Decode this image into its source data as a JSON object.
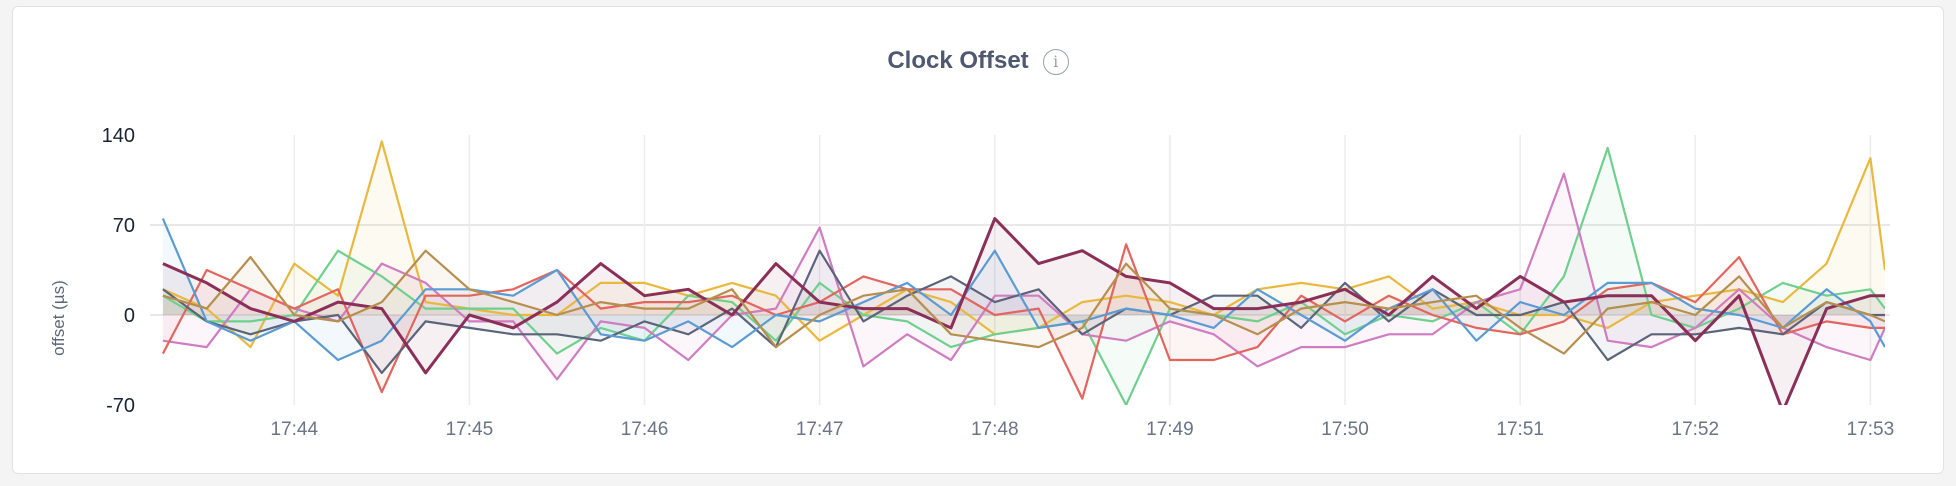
{
  "title": "Clock Offset",
  "info_icon": "info-circle-icon",
  "chart_data": {
    "type": "line",
    "fill": "area-to-zero",
    "title": "Clock Offset",
    "xlabel": "",
    "ylabel": "offset (µs)",
    "ylim": [
      -70,
      140
    ],
    "yticks": [
      "140",
      "70",
      "0",
      "-70"
    ],
    "xticks": [
      "17:44",
      "17:45",
      "17:46",
      "17:47",
      "17:48",
      "17:49",
      "17:50",
      "17:51",
      "17:52",
      "17:53"
    ],
    "xlim": [
      "17:43:14",
      "17:53:05"
    ],
    "grid": true,
    "legend": "none",
    "x": [
      "17:43:15",
      "17:43:30",
      "17:43:45",
      "17:44:00",
      "17:44:15",
      "17:44:30",
      "17:44:45",
      "17:45:00",
      "17:45:15",
      "17:45:30",
      "17:45:45",
      "17:46:00",
      "17:46:15",
      "17:46:30",
      "17:46:45",
      "17:47:00",
      "17:47:15",
      "17:47:30",
      "17:47:45",
      "17:48:00",
      "17:48:15",
      "17:48:30",
      "17:48:45",
      "17:49:00",
      "17:49:15",
      "17:49:30",
      "17:49:45",
      "17:50:00",
      "17:50:15",
      "17:50:30",
      "17:50:45",
      "17:51:00",
      "17:51:15",
      "17:51:30",
      "17:51:45",
      "17:52:00",
      "17:52:15",
      "17:52:30",
      "17:52:45",
      "17:53:00",
      "17:53:05"
    ],
    "series": [
      {
        "color": "#e8b83f",
        "values": [
          20,
          5,
          -25,
          40,
          15,
          135,
          10,
          5,
          0,
          0,
          25,
          25,
          15,
          25,
          15,
          -20,
          0,
          20,
          10,
          -15,
          -10,
          10,
          15,
          10,
          0,
          20,
          25,
          20,
          30,
          5,
          10,
          0,
          0,
          -10,
          10,
          15,
          20,
          10,
          40,
          122,
          35
        ]
      },
      {
        "color": "#6fd08e",
        "values": [
          15,
          -5,
          -5,
          0,
          50,
          30,
          5,
          5,
          5,
          -30,
          -10,
          -20,
          15,
          10,
          -20,
          25,
          0,
          -5,
          -25,
          -15,
          -10,
          -5,
          -70,
          5,
          0,
          -5,
          10,
          -15,
          0,
          -5,
          10,
          -15,
          30,
          130,
          0,
          -10,
          5,
          25,
          15,
          20,
          5
        ]
      },
      {
        "color": "#cf7cc1",
        "values": [
          -20,
          -25,
          20,
          5,
          -5,
          40,
          25,
          -5,
          -5,
          -50,
          -5,
          -10,
          -35,
          0,
          5,
          68,
          -40,
          -15,
          -35,
          15,
          15,
          -15,
          -20,
          -5,
          -15,
          -40,
          -25,
          -25,
          -15,
          -15,
          10,
          20,
          110,
          -20,
          -25,
          -10,
          20,
          -10,
          -25,
          -35,
          -10
        ]
      },
      {
        "color": "#e2655e",
        "values": [
          -30,
          35,
          20,
          5,
          20,
          -60,
          15,
          15,
          20,
          35,
          5,
          10,
          10,
          15,
          0,
          10,
          30,
          20,
          20,
          0,
          5,
          -65,
          55,
          -35,
          -35,
          -25,
          15,
          -5,
          15,
          0,
          -10,
          -15,
          -5,
          20,
          25,
          10,
          45,
          -15,
          -5,
          -10,
          -10
        ]
      },
      {
        "color": "#5b6479",
        "values": [
          20,
          -5,
          -15,
          -5,
          0,
          -45,
          -5,
          -10,
          -15,
          -15,
          -20,
          -5,
          -15,
          5,
          -25,
          50,
          -5,
          15,
          30,
          10,
          20,
          -15,
          5,
          0,
          15,
          15,
          -10,
          25,
          -5,
          20,
          0,
          0,
          10,
          -35,
          -15,
          -15,
          -10,
          -15,
          10,
          0,
          0
        ]
      },
      {
        "color": "#5b9bd3",
        "values": [
          75,
          -5,
          -20,
          -5,
          -35,
          -20,
          20,
          20,
          15,
          35,
          -15,
          -20,
          -5,
          -25,
          0,
          -5,
          10,
          25,
          0,
          50,
          -10,
          -5,
          5,
          0,
          -10,
          20,
          0,
          -20,
          5,
          20,
          -20,
          10,
          0,
          25,
          25,
          5,
          0,
          -10,
          20,
          -5,
          -25
        ]
      },
      {
        "color": "#8a2f58",
        "values": [
          40,
          25,
          5,
          -5,
          10,
          5,
          -45,
          0,
          -10,
          10,
          40,
          15,
          20,
          0,
          40,
          10,
          5,
          5,
          -10,
          75,
          40,
          50,
          30,
          25,
          5,
          5,
          10,
          20,
          0,
          30,
          5,
          30,
          10,
          15,
          15,
          -20,
          15,
          -75,
          5,
          15,
          15
        ]
      },
      {
        "color": "#b68f4e",
        "values": [
          15,
          5,
          45,
          0,
          -5,
          10,
          50,
          20,
          10,
          0,
          10,
          5,
          5,
          20,
          -25,
          0,
          15,
          20,
          -15,
          -20,
          -25,
          -10,
          40,
          5,
          0,
          -15,
          5,
          10,
          5,
          10,
          15,
          -10,
          -30,
          5,
          10,
          0,
          30,
          -10,
          10,
          0,
          -5
        ]
      }
    ]
  }
}
